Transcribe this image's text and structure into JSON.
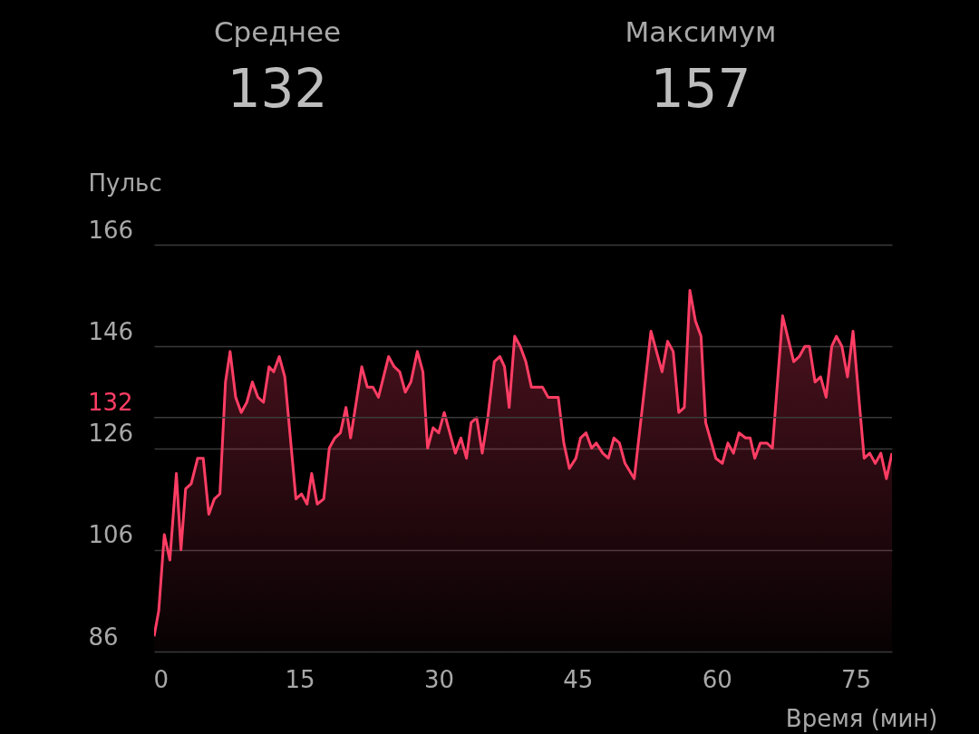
{
  "chart_data": {
    "type": "area",
    "annotations": [
      "Среднее",
      "132",
      "Максимум",
      "157"
    ],
    "ylabel": "Пульс",
    "xlabel": "Время (мин)",
    "x": [
      -0.7,
      -0.2,
      0.4,
      1.0,
      1.7,
      2.2,
      2.7,
      3.3,
      4.0,
      4.6,
      5.2,
      5.8,
      6.4,
      7.0,
      7.5,
      8.1,
      8.7,
      9.3,
      9.9,
      10.5,
      11.1,
      11.7,
      12.2,
      12.8,
      13.4,
      14.6,
      15.2,
      15.8,
      16.3,
      16.9,
      17.6,
      18.2,
      18.8,
      19.4,
      20.0,
      20.5,
      21.7,
      22.3,
      22.9,
      23.5,
      24.6,
      25.2,
      25.8,
      26.4,
      27.0,
      27.7,
      28.3,
      28.8,
      29.4,
      30.0,
      30.6,
      31.2,
      31.8,
      32.4,
      33.0,
      33.5,
      34.1,
      34.7,
      35.3,
      36.0,
      36.6,
      37.1,
      37.6,
      38.2,
      38.8,
      39.4,
      40.0,
      41.2,
      41.8,
      42.9,
      43.5,
      44.1,
      44.8,
      45.3,
      45.9,
      46.5,
      47.0,
      47.7,
      48.3,
      48.9,
      49.5,
      50.1,
      51.1,
      52.9,
      54.1,
      54.7,
      55.3,
      55.9,
      56.5,
      57.1,
      57.7,
      58.3,
      58.8,
      59.9,
      60.6,
      61.2,
      61.8,
      62.4,
      63.1,
      63.6,
      64.1,
      64.7,
      65.4,
      66.0,
      67.1,
      68.3,
      68.9,
      69.5,
      70.0,
      70.6,
      71.2,
      71.8,
      72.4,
      72.9,
      73.5,
      74.1,
      74.7,
      75.9,
      76.5,
      77.1,
      77.7,
      78.3,
      78.9
    ],
    "series": [
      {
        "color": "#ff3d64",
        "values": [
          89,
          94,
          109,
          104,
          121,
          106,
          118,
          119,
          124,
          124,
          113,
          116,
          117,
          139,
          145,
          136,
          133,
          135,
          139,
          136,
          135,
          142,
          141,
          144,
          140,
          116,
          117,
          115,
          121,
          115,
          116,
          126,
          128,
          129,
          134,
          128,
          142,
          138,
          138,
          136,
          144,
          142,
          141,
          137,
          139,
          145,
          141,
          126,
          130,
          129,
          133,
          129,
          125,
          128,
          124,
          131,
          132,
          125,
          132,
          143,
          144,
          142,
          134,
          148,
          146,
          143,
          138,
          138,
          136,
          136,
          127,
          122,
          124,
          128,
          129,
          126,
          127,
          125,
          124,
          128,
          127,
          123,
          120,
          149,
          141,
          147,
          145,
          133,
          134,
          157,
          151,
          148,
          131,
          124,
          123,
          127,
          125,
          129,
          128,
          128,
          124,
          127,
          127,
          126,
          152,
          143,
          144,
          146,
          146,
          139,
          140,
          136,
          146,
          148,
          146,
          140,
          149,
          124,
          125,
          123,
          125,
          120,
          125
        ]
      }
    ],
    "xlim": [
      -0.7,
      78.9
    ],
    "xticks": [
      0,
      15,
      30,
      45,
      60,
      75
    ],
    "ylim": [
      86,
      166
    ],
    "yticks": [
      86,
      106,
      126,
      146,
      166
    ],
    "grid": "y",
    "ref_lines": [
      {
        "axis": "y",
        "value": 132,
        "label": "132"
      }
    ]
  }
}
